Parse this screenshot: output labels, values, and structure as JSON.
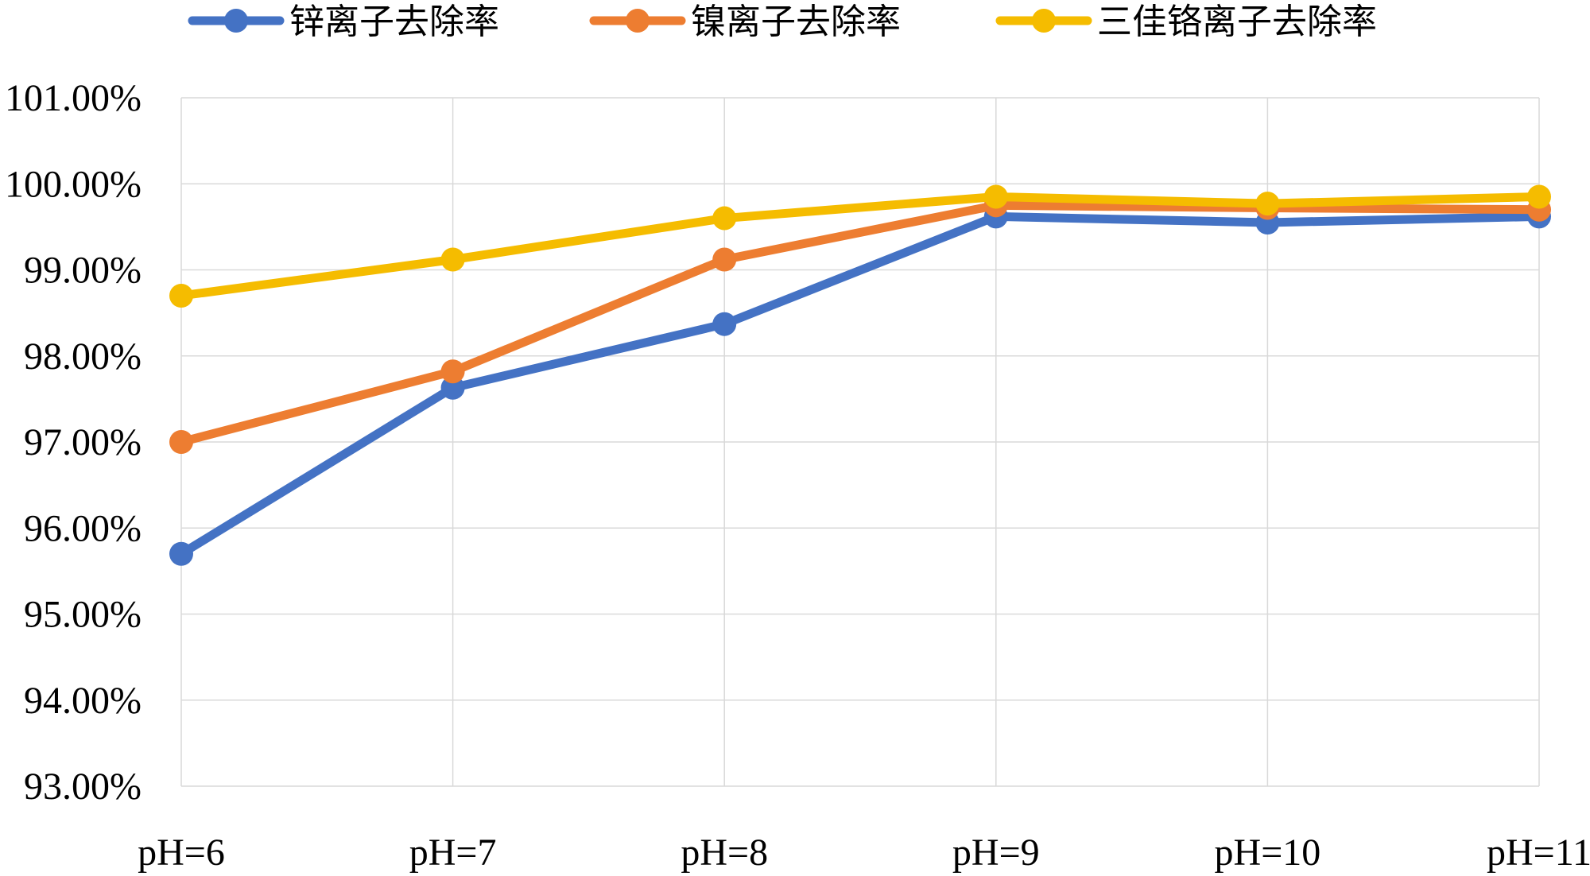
{
  "chart_data": {
    "type": "line",
    "title": "",
    "xlabel": "",
    "ylabel": "",
    "categories": [
      "pH=6",
      "pH=7",
      "pH=8",
      "pH=9",
      "pH=10",
      "pH=11"
    ],
    "ylim": [
      93.0,
      101.0
    ],
    "yticks": [
      101,
      100,
      99,
      98,
      97,
      96,
      95,
      94,
      93
    ],
    "ytick_labels": [
      "101.00%",
      "100.00%",
      "99.00%",
      "98.00%",
      "97.00%",
      "96.00%",
      "95.00%",
      "94.00%",
      "93.00%"
    ],
    "grid": true,
    "legend_position": "top",
    "series": [
      {
        "name": "锌离子去除率",
        "color": "#4472C4",
        "values": [
          95.7,
          97.63,
          98.37,
          99.62,
          99.55,
          99.62
        ]
      },
      {
        "name": "镍离子去除率",
        "color": "#ED7D31",
        "values": [
          97.0,
          97.82,
          99.12,
          99.75,
          99.72,
          99.7
        ]
      },
      {
        "name": "三佳铬离子去除率",
        "color": "#F5BC00",
        "values": [
          98.7,
          99.12,
          99.6,
          99.85,
          99.77,
          99.85
        ]
      }
    ]
  }
}
